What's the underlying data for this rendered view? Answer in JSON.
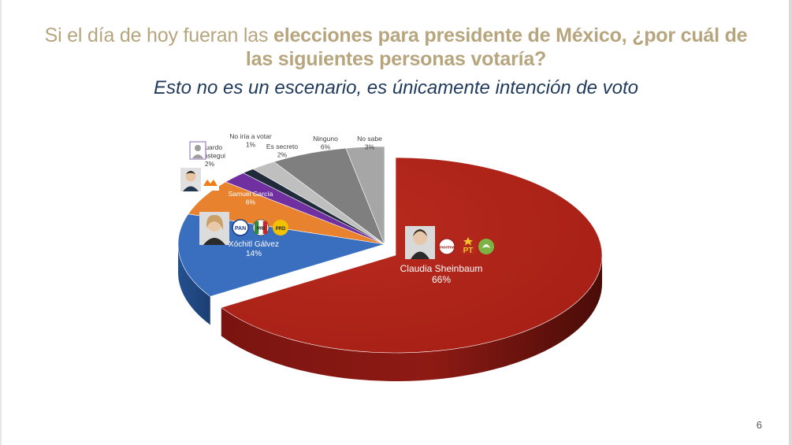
{
  "header": {
    "title_normal": "Si el día de hoy fueran las ",
    "title_bold_1": "elecciones para presidente de México, ¿por cuál de",
    "title_bold_2": "las siguientes personas votaría?",
    "subtitle": "Esto no es un escenario, es únicamente intención de voto"
  },
  "page_number": "6",
  "party_logos": {
    "morena": "morena",
    "pt": "PT",
    "pan": "PAN",
    "pri": "PRI",
    "prd": "PRD"
  },
  "colors": {
    "title": "#b7a57e",
    "subtitle": "#1f3a5c",
    "sheinbaum": "#b02318",
    "galvez": "#3a6ebe",
    "garcia": "#e8822e",
    "verastegui": "#7030a0",
    "no_votar": "#1f2a3a",
    "secreto": "#bfbfbf",
    "ninguno": "#7f7f7f",
    "no_sabe": "#a6a6a6"
  },
  "chart_data": {
    "type": "pie",
    "title": "",
    "categories": [
      "Claudia Sheinbaum",
      "Xóchitl Gálvez",
      "Samuel García",
      "Eduardo Verástegui",
      "No iría a votar",
      "Es secreto",
      "Ninguno",
      "No sabe"
    ],
    "values": [
      66,
      14,
      6,
      2,
      1,
      2,
      6,
      3
    ],
    "labels": [
      "66%",
      "14%",
      "6%",
      "2%",
      "1%",
      "2%",
      "6%",
      "3%"
    ],
    "label_names": [
      "Claudia Sheinbaum",
      "Xóchitl Gálvez",
      "Samuel García",
      "Eduardo\nVerástegui",
      "No iría a votar",
      "Es secreto",
      "Ninguno",
      "No sabe"
    ],
    "style": "3d-exploded",
    "legend": "none"
  }
}
